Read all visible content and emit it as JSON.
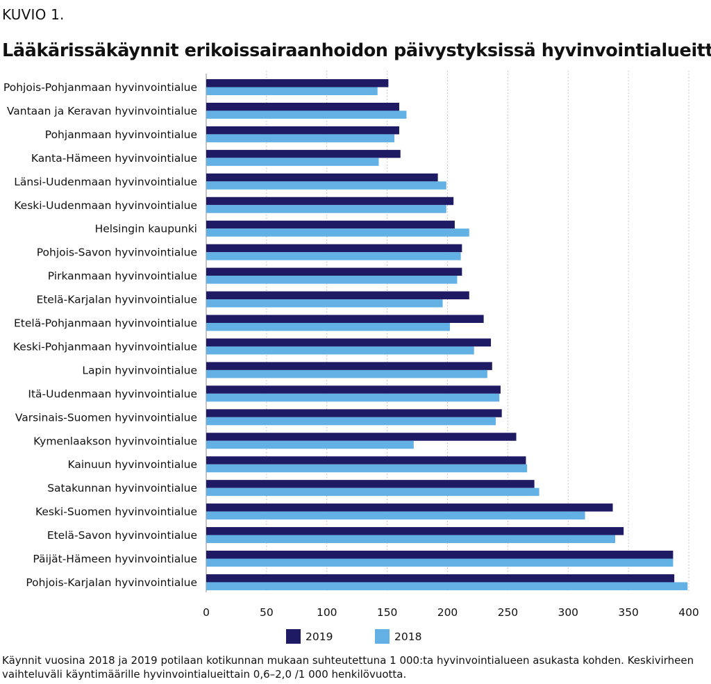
{
  "figure_label": "KUVIO 1.",
  "note": "Käynnit vuosina 2018 ja 2019 potilaan kotikunnan mukaan suhteutettuna 1 000:ta hyvinvointialueen asukasta kohden. Keskivirheen vaihteluväli käyntimäärille hyvinvointialueittain 0,6–2,0 /1 000 henkilövuotta.",
  "chart_data": {
    "type": "bar",
    "orientation": "horizontal",
    "title": "Lääkärissäkäynnit erikoissairaanhoidon päivystyksissä hyvinvointialueittain",
    "xlabel": "",
    "ylabel": "",
    "xlim": [
      0,
      400
    ],
    "xticks": [
      0,
      50,
      100,
      150,
      200,
      250,
      300,
      350,
      400
    ],
    "grid": "vertical-dotted",
    "legend_position": "bottom",
    "categories": [
      "Pohjois-Pohjanmaan hyvinvointialue",
      "Vantaan ja Keravan hyvinvointialue",
      "Pohjanmaan hyvinvointialue",
      "Kanta-Hämeen hyvinvointialue",
      "Länsi-Uudenmaan hyvinvointialue",
      "Keski-Uudenmaan hyvinvointialue",
      "Helsingin kaupunki",
      "Pohjois-Savon hyvinvointialue",
      "Pirkanmaan hyvinvointialue",
      "Etelä-Karjalan hyvinvointialue",
      "Etelä-Pohjanmaan hyvinvointialue",
      "Keski-Pohjanmaan hyvinvointialue",
      "Lapin hyvinvointialue",
      "Itä-Uudenmaan hyvinvointialue",
      "Varsinais-Suomen hyvinvointialue",
      "Kymenlaakson hyvinvointialue",
      "Kainuun hyvinvointialue",
      "Satakunnan hyvinvointialue",
      "Keski-Suomen hyvinvointialue",
      "Etelä-Savon hyvinvointialue",
      "Päijät-Hämeen hyvinvointialue",
      "Pohjois-Karjalan hyvinvointialue"
    ],
    "series": [
      {
        "name": "2019",
        "color": "#1e1b64",
        "values": [
          151,
          160,
          160,
          161,
          192,
          205,
          206,
          212,
          212,
          218,
          230,
          236,
          237,
          244,
          245,
          257,
          265,
          272,
          337,
          346,
          387,
          388
        ]
      },
      {
        "name": "2018",
        "color": "#62b0e4",
        "values": [
          142,
          166,
          156,
          143,
          199,
          199,
          218,
          211,
          208,
          196,
          202,
          222,
          233,
          243,
          240,
          172,
          266,
          276,
          314,
          339,
          387,
          399
        ]
      }
    ]
  }
}
